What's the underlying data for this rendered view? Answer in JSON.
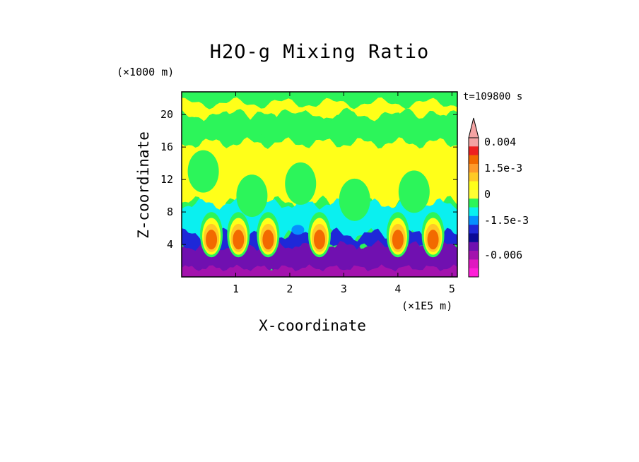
{
  "chart_data": {
    "type": "heatmap",
    "title": "H2O-g Mixing Ratio",
    "xlabel": "X-coordinate",
    "ylabel": "Z-coordinate",
    "x_unit": "(×1E5 m)",
    "y_unit": "(×1000 m)",
    "time_label": "t=109800 s",
    "xlim": [
      0,
      5.1
    ],
    "ylim": [
      0,
      22.8
    ],
    "x_ticks": [
      1,
      2,
      3,
      4,
      5
    ],
    "y_ticks": [
      4,
      8,
      12,
      16,
      20
    ],
    "colorbar": {
      "levels_top_to_bottom": [
        "#f4a3a3",
        "#ee2020",
        "#f26a00",
        "#ff9a2a",
        "#ffca26",
        "#ffff19",
        "#ffff33",
        "#2cf55a",
        "#0af0f0",
        "#0590ff",
        "#1e28d8",
        "#0a0a96",
        "#7010b0",
        "#a312ad",
        "#e018c0",
        "#ff1fd8"
      ],
      "tick_labels": [
        "0.004",
        "1.5e-3",
        "0",
        "-1.5e-3",
        "-0.006"
      ]
    },
    "bands": [
      {
        "color": "#2cf55a",
        "z_range": [
          20.5,
          22.8
        ],
        "description": "upper layer green"
      },
      {
        "color": "#ffff19",
        "z_range": [
          19.8,
          21.4
        ],
        "description": "yellow band near 20-21"
      },
      {
        "color": "#2cf55a",
        "z_range": [
          16.5,
          19.8
        ],
        "description": "green layer"
      },
      {
        "color": "#ffff19",
        "z_range": [
          9.0,
          16.5
        ],
        "description": "yellow mid layer"
      },
      {
        "color": "#0af0f0",
        "z_range": [
          5.0,
          9.0
        ],
        "description": "cyan layer"
      },
      {
        "color": "#7010b0",
        "z_range": [
          0,
          4.0
        ],
        "description": "purple boundary layer"
      }
    ],
    "plumes_x": [
      0.55,
      1.05,
      1.6,
      2.55,
      4.0,
      4.65
    ],
    "grid": false,
    "legend_placement": "right"
  }
}
